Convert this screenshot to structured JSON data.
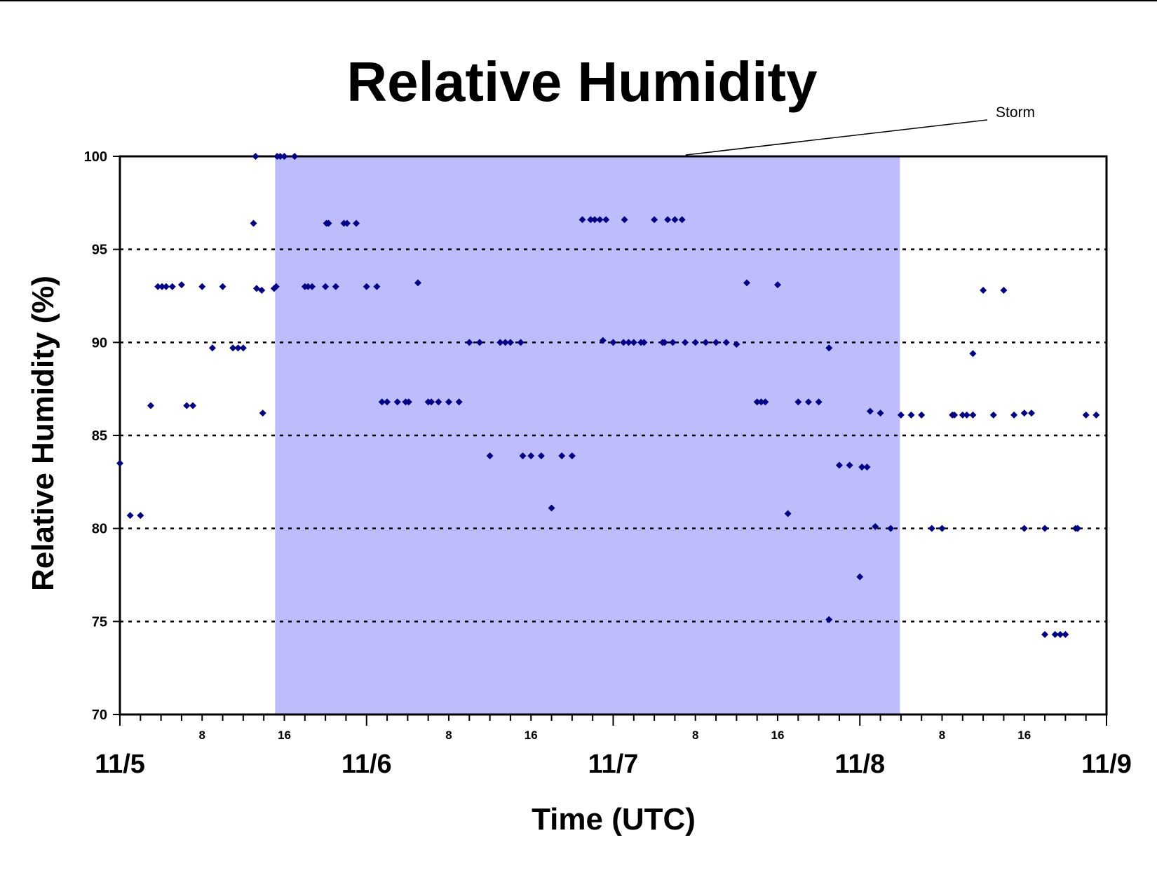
{
  "chart_data": {
    "type": "scatter",
    "title": "Relative Humidity",
    "xlabel": "Time (UTC)",
    "ylabel": "Relative Humidity (%)",
    "ylim": [
      70,
      100
    ],
    "yticks": [
      "70",
      "75",
      "80",
      "85",
      "90",
      "95",
      "100"
    ],
    "y_gridlines": [
      75,
      80,
      85,
      90,
      95
    ],
    "grid_style": "dotted horizontal",
    "x_start": "11/5 00 UTC",
    "xlim_hours": [
      0,
      96
    ],
    "x_major_ticks": [
      {
        "hour": 0,
        "label": "11/5"
      },
      {
        "hour": 24,
        "label": "11/6"
      },
      {
        "hour": 48,
        "label": "11/7"
      },
      {
        "hour": 72,
        "label": "11/8"
      },
      {
        "hour": 96,
        "label": "11/9"
      }
    ],
    "x_minor_labels": [
      "8",
      "16"
    ],
    "marker_color": "#00008B",
    "shaded_region": {
      "label": "Storm",
      "x_start_hour": 15.1,
      "x_end_hour": 75.9,
      "color": "#BDBDFB"
    },
    "series": [
      {
        "name": "",
        "points": [
          [
            0.0,
            83.5
          ],
          [
            1.0,
            80.7
          ],
          [
            2.0,
            80.7
          ],
          [
            3.0,
            86.6
          ],
          [
            3.7,
            93.0
          ],
          [
            4.1,
            93.0
          ],
          [
            4.5,
            93.0
          ],
          [
            5.1,
            93.0
          ],
          [
            6.0,
            93.1
          ],
          [
            6.5,
            86.6
          ],
          [
            7.1,
            86.6
          ],
          [
            8.0,
            93.0
          ],
          [
            9.0,
            89.7
          ],
          [
            10.0,
            93.0
          ],
          [
            11.0,
            89.7
          ],
          [
            11.5,
            89.7
          ],
          [
            12.0,
            89.7
          ],
          [
            13.0,
            96.4
          ],
          [
            13.2,
            100.0
          ],
          [
            13.3,
            92.9
          ],
          [
            13.8,
            92.8
          ],
          [
            13.9,
            86.2
          ],
          [
            15.0,
            92.9
          ],
          [
            15.2,
            93.0
          ],
          [
            15.3,
            100.0
          ],
          [
            15.6,
            100.0
          ],
          [
            16.0,
            100.0
          ],
          [
            17.0,
            100.0
          ],
          [
            18.0,
            93.0
          ],
          [
            18.3,
            93.0
          ],
          [
            18.7,
            93.0
          ],
          [
            20.0,
            93.0
          ],
          [
            20.1,
            96.4
          ],
          [
            20.3,
            96.4
          ],
          [
            21.0,
            93.0
          ],
          [
            21.8,
            96.4
          ],
          [
            22.1,
            96.4
          ],
          [
            23.0,
            96.4
          ],
          [
            24.0,
            93.0
          ],
          [
            25.0,
            93.0
          ],
          [
            25.5,
            86.8
          ],
          [
            26.0,
            86.8
          ],
          [
            27.0,
            86.8
          ],
          [
            27.8,
            86.8
          ],
          [
            28.1,
            86.8
          ],
          [
            29.0,
            93.2
          ],
          [
            30.0,
            86.8
          ],
          [
            30.3,
            86.8
          ],
          [
            31.0,
            86.8
          ],
          [
            32.0,
            86.8
          ],
          [
            33.0,
            86.8
          ],
          [
            34.0,
            90.0
          ],
          [
            35.0,
            90.0
          ],
          [
            36.0,
            83.9
          ],
          [
            37.0,
            90.0
          ],
          [
            37.5,
            90.0
          ],
          [
            38.0,
            90.0
          ],
          [
            39.0,
            90.0
          ],
          [
            39.2,
            83.9
          ],
          [
            40.0,
            83.9
          ],
          [
            41.0,
            83.9
          ],
          [
            42.0,
            81.1
          ],
          [
            43.0,
            83.9
          ],
          [
            44.0,
            83.9
          ],
          [
            45.0,
            96.6
          ],
          [
            45.8,
            96.6
          ],
          [
            46.2,
            96.6
          ],
          [
            46.7,
            96.6
          ],
          [
            47.0,
            90.1
          ],
          [
            47.3,
            96.6
          ],
          [
            48.0,
            90.0
          ],
          [
            49.0,
            90.0
          ],
          [
            49.1,
            96.6
          ],
          [
            49.5,
            90.0
          ],
          [
            50.0,
            90.0
          ],
          [
            50.7,
            90.0
          ],
          [
            51.0,
            90.0
          ],
          [
            52.0,
            96.6
          ],
          [
            52.8,
            90.0
          ],
          [
            53.0,
            90.0
          ],
          [
            53.3,
            96.6
          ],
          [
            53.8,
            90.0
          ],
          [
            54.0,
            96.6
          ],
          [
            54.7,
            96.6
          ],
          [
            55.0,
            90.0
          ],
          [
            56.0,
            90.0
          ],
          [
            57.0,
            90.0
          ],
          [
            58.0,
            90.0
          ],
          [
            59.0,
            90.0
          ],
          [
            60.0,
            89.9
          ],
          [
            61.0,
            93.2
          ],
          [
            62.0,
            86.8
          ],
          [
            62.4,
            86.8
          ],
          [
            62.8,
            86.8
          ],
          [
            64.0,
            93.1
          ],
          [
            65.0,
            80.8
          ],
          [
            66.0,
            86.8
          ],
          [
            67.0,
            86.8
          ],
          [
            68.0,
            86.8
          ],
          [
            69.0,
            75.1
          ],
          [
            69.0,
            89.7
          ],
          [
            70.0,
            83.4
          ],
          [
            71.0,
            83.4
          ],
          [
            72.0,
            77.4
          ],
          [
            72.2,
            83.3
          ],
          [
            72.7,
            83.3
          ],
          [
            73.0,
            86.3
          ],
          [
            73.5,
            80.1
          ],
          [
            74.0,
            86.2
          ],
          [
            75.0,
            80.0
          ],
          [
            76.0,
            86.1
          ],
          [
            77.0,
            86.1
          ],
          [
            78.0,
            86.1
          ],
          [
            79.0,
            80.0
          ],
          [
            80.0,
            80.0
          ],
          [
            81.0,
            86.1
          ],
          [
            81.2,
            86.1
          ],
          [
            82.0,
            86.1
          ],
          [
            82.4,
            86.1
          ],
          [
            83.0,
            86.1
          ],
          [
            83.0,
            89.4
          ],
          [
            84.0,
            92.8
          ],
          [
            85.0,
            86.1
          ],
          [
            86.0,
            92.8
          ],
          [
            87.0,
            86.1
          ],
          [
            88.0,
            80.0
          ],
          [
            88.0,
            86.2
          ],
          [
            88.7,
            86.2
          ],
          [
            90.0,
            80.0
          ],
          [
            90.0,
            74.3
          ],
          [
            91.0,
            74.3
          ],
          [
            91.5,
            74.3
          ],
          [
            92.0,
            74.3
          ],
          [
            93.0,
            80.0
          ],
          [
            93.2,
            80.0
          ],
          [
            94.0,
            86.1
          ],
          [
            95.0,
            86.1
          ]
        ]
      }
    ]
  }
}
